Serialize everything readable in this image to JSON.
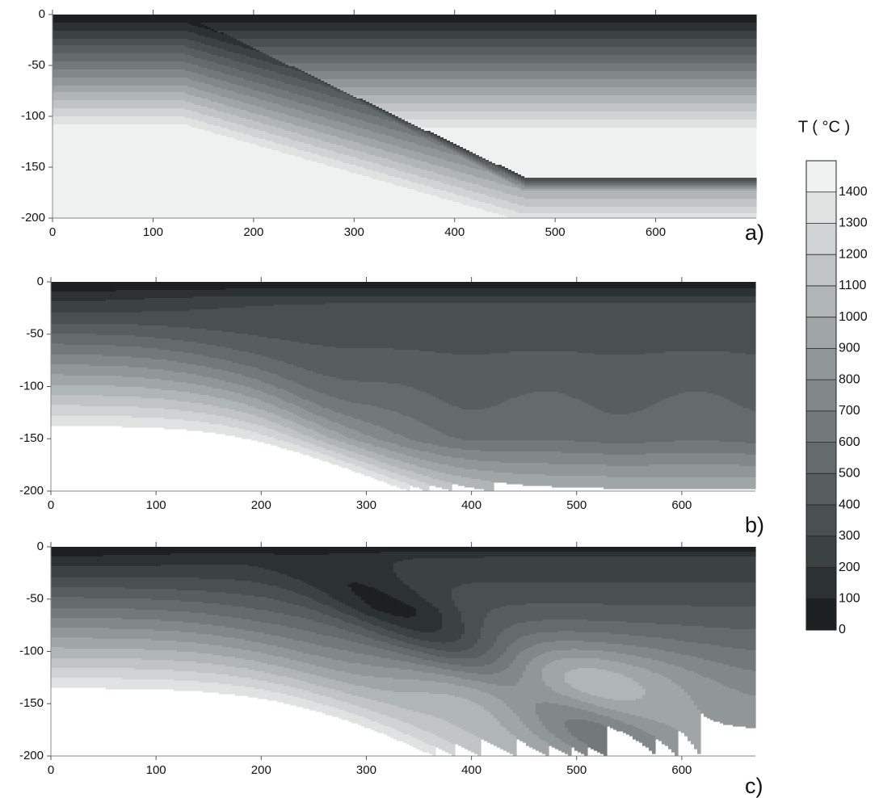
{
  "chart_data": [
    {
      "type": "contour",
      "label": "a)",
      "xlim": [
        0,
        700
      ],
      "ylim": [
        -200,
        0
      ],
      "xticks": [
        0,
        100,
        200,
        300,
        400,
        500,
        600
      ],
      "yticks": [
        0,
        -50,
        -100,
        -150,
        -200
      ]
    },
    {
      "type": "contour",
      "label": "b)",
      "xlim": [
        0,
        670
      ],
      "ylim": [
        -200,
        0
      ],
      "xticks": [
        0,
        100,
        200,
        300,
        400,
        500,
        600
      ],
      "yticks": [
        0,
        -50,
        -100,
        -150,
        -200
      ]
    },
    {
      "type": "contour",
      "label": "c)",
      "xlim": [
        0,
        670
      ],
      "ylim": [
        -200,
        0
      ],
      "xticks": [
        0,
        100,
        200,
        300,
        400,
        500,
        600
      ],
      "yticks": [
        0,
        -50,
        -100,
        -150,
        -200
      ]
    }
  ],
  "colorbar": {
    "title": "T ( °C )",
    "range": [
      0,
      1500
    ],
    "ticks": [
      0,
      100,
      200,
      300,
      400,
      500,
      600,
      700,
      800,
      900,
      1000,
      1100,
      1200,
      1300,
      1400
    ],
    "colors": [
      "#1c2020",
      "#2c3131",
      "#3c4242",
      "#4a5050",
      "#585e5e",
      "#656b6b",
      "#737979",
      "#828888",
      "#919797",
      "#a0a5a5",
      "#b0b5b5",
      "#c0c4c4",
      "#d0d3d3",
      "#e0e2e2",
      "#eff0f0"
    ]
  }
}
